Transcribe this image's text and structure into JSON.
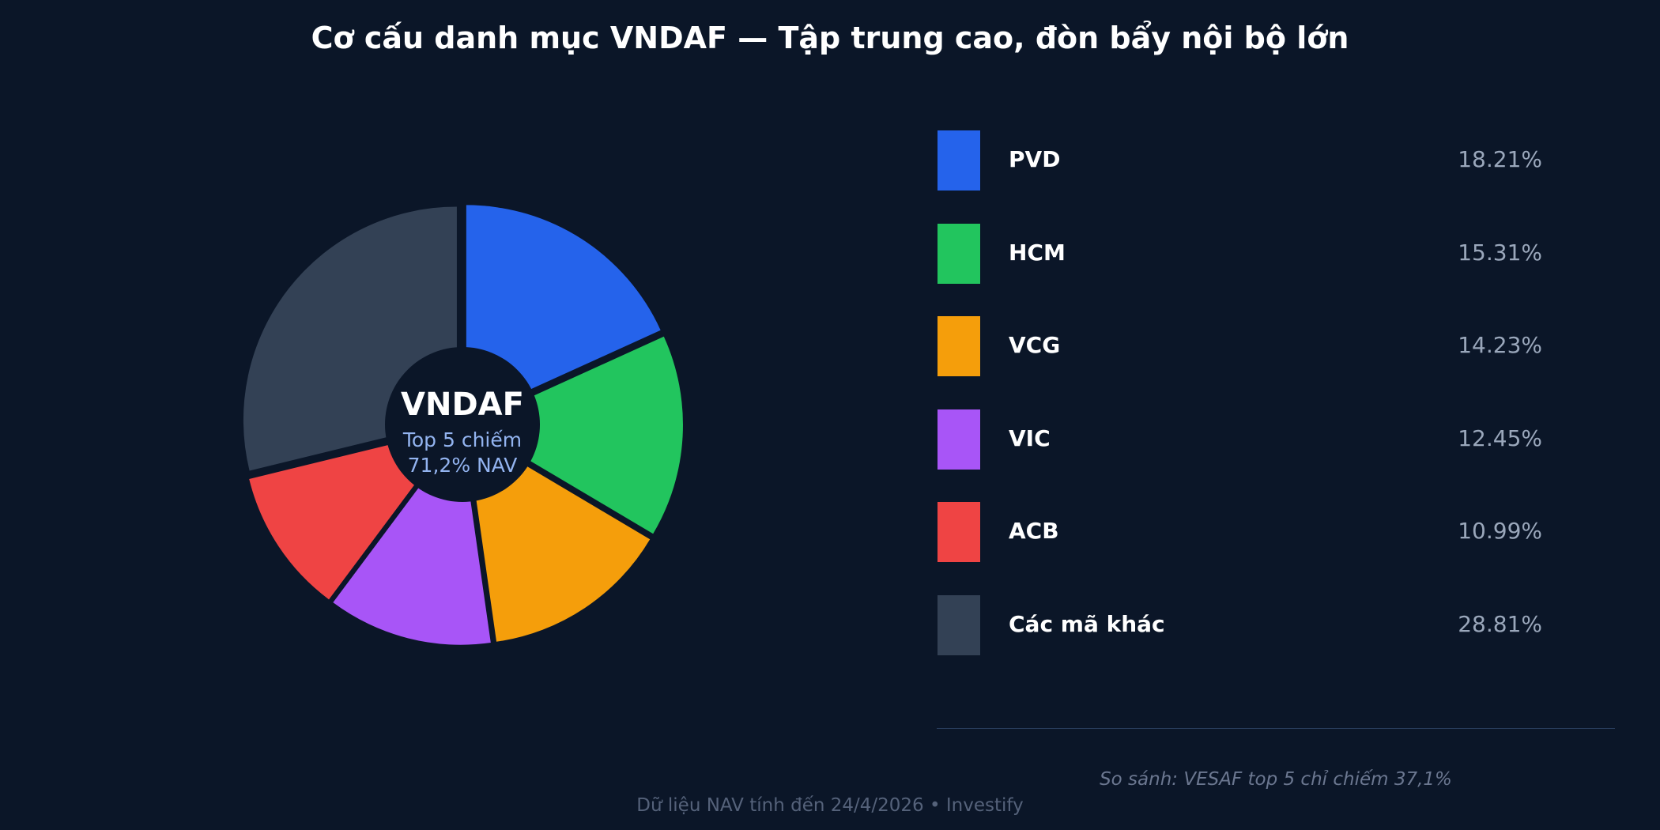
{
  "title": "Cơ cấu danh mục VNDAF — Tập trung cao, đòn bẩy nội bộ lớn",
  "center": {
    "name": "VNDAF",
    "line1": "Top 5 chiếm",
    "line2": "71,2% NAV"
  },
  "chart_data": {
    "type": "pie",
    "title": "Cơ cấu danh mục VNDAF — Tập trung cao, đòn bẩy nội bộ lớn",
    "unit": "%",
    "slices": [
      {
        "label": "PVD",
        "value": 18.21,
        "display": "18.21%",
        "color": "#2563eb"
      },
      {
        "label": "HCM",
        "value": 15.31,
        "display": "15.31%",
        "color": "#22c55e"
      },
      {
        "label": "VCG",
        "value": 14.23,
        "display": "14.23%",
        "color": "#f59e0b"
      },
      {
        "label": "VIC",
        "value": 12.45,
        "display": "12.45%",
        "color": "#a855f7"
      },
      {
        "label": "ACB",
        "value": 10.99,
        "display": "10.99%",
        "color": "#ef4444"
      },
      {
        "label": "Các mã khác",
        "value": 28.81,
        "display": "28.81%",
        "color": "#334155"
      }
    ],
    "legend_position": "right"
  },
  "note": "So sánh: VESAF top 5 chỉ chiếm 37,1%",
  "footer": "Dữ liệu NAV tính đến 24/4/2026  •  Investify"
}
